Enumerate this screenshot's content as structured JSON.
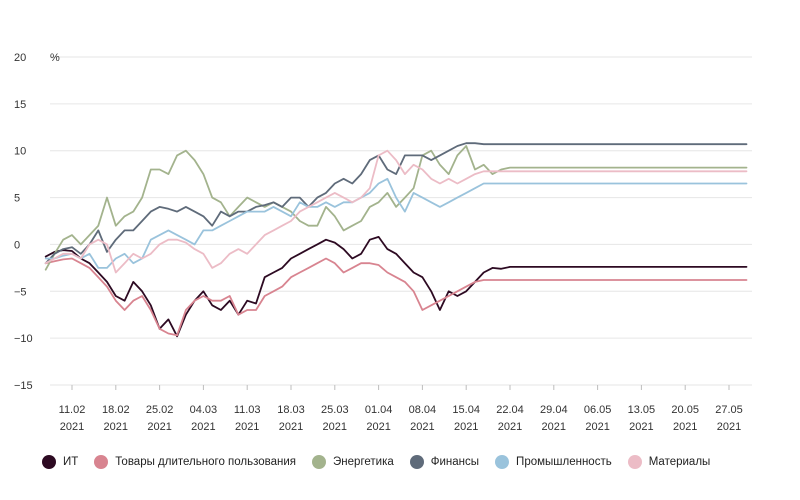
{
  "chart_data": {
    "type": "line",
    "ylabel": "%",
    "ylim": [
      -15,
      20
    ],
    "yticks": [
      "20",
      "15",
      "10",
      "5",
      "0",
      "−5",
      "−10",
      "−15"
    ],
    "yticks_values": [
      20,
      15,
      10,
      5,
      0,
      -5,
      -10,
      -15
    ],
    "grid": "horizontal",
    "legend_position": "bottom",
    "xticks": [
      {
        "date": "11.02",
        "year": "2021"
      },
      {
        "date": "18.02",
        "year": "2021"
      },
      {
        "date": "25.02",
        "year": "2021"
      },
      {
        "date": "04.03",
        "year": "2021"
      },
      {
        "date": "11.03",
        "year": "2021"
      },
      {
        "date": "18.03",
        "year": "2021"
      },
      {
        "date": "25.03",
        "year": "2021"
      },
      {
        "date": "01.04",
        "year": "2021"
      },
      {
        "date": "08.04",
        "year": "2021"
      },
      {
        "date": "15.04",
        "year": "2021"
      },
      {
        "date": "22.04",
        "year": "2021"
      },
      {
        "date": "29.04",
        "year": "2021"
      },
      {
        "date": "06.05",
        "year": "2021"
      },
      {
        "date": "13.05",
        "year": "2021"
      },
      {
        "date": "20.05",
        "year": "2021"
      },
      {
        "date": "27.05",
        "year": "2021"
      }
    ],
    "x": [
      "08.02",
      "09.02",
      "10.02",
      "11.02",
      "12.02",
      "15.02",
      "16.02",
      "17.02",
      "18.02",
      "19.02",
      "22.02",
      "23.02",
      "24.02",
      "25.02",
      "26.02",
      "01.03",
      "02.03",
      "03.03",
      "04.03",
      "05.03",
      "08.03",
      "09.03",
      "10.03",
      "11.03",
      "12.03",
      "15.03",
      "16.03",
      "17.03",
      "18.03",
      "19.03",
      "22.03",
      "23.03",
      "24.03",
      "25.03",
      "26.03",
      "29.03",
      "30.03",
      "31.03",
      "01.04",
      "02.04",
      "05.04",
      "06.04",
      "07.04",
      "08.04",
      "09.04",
      "12.04",
      "13.04",
      "14.04",
      "15.04",
      "16.04",
      "19.04",
      "20.04",
      "21.04",
      "22.04",
      "23.04",
      "26.04",
      "27.04",
      "28.04",
      "29.04",
      "30.04",
      "03.05",
      "04.05",
      "05.05",
      "06.05",
      "07.05",
      "10.05",
      "11.05",
      "12.05",
      "13.05",
      "14.05",
      "17.05",
      "18.05",
      "19.05",
      "20.05",
      "21.05",
      "24.05",
      "25.05",
      "26.05",
      "27.05",
      "28.05",
      "31.05"
    ],
    "series": [
      {
        "name": "ИТ",
        "color": "#2d0a22",
        "values": [
          -1.3,
          -0.8,
          -0.6,
          -0.7,
          -1.5,
          -2.0,
          -3.0,
          -4.0,
          -5.5,
          -6.0,
          -4.0,
          -5.0,
          -6.5,
          -9.0,
          -8.0,
          -9.8,
          -7.5,
          -6.0,
          -5.0,
          -6.5,
          -7.0,
          -6.0,
          -7.5,
          -6.0,
          -6.3,
          -3.5,
          -3.0,
          -2.5,
          -1.5,
          -1.0,
          -0.5,
          0.0,
          0.5,
          0.2,
          -0.5,
          -1.5,
          -1.0,
          0.5,
          0.8,
          -0.5,
          -1.0,
          -2.0,
          -3.0,
          -3.5,
          -5.0,
          -7.0,
          -5.0,
          -5.5,
          -5.0,
          -4.0,
          -3.0,
          -2.5,
          -2.6,
          -2.4,
          -2.4,
          -2.4,
          -2.4,
          -2.4,
          -2.4,
          -2.4,
          -2.4,
          -2.4,
          -2.4,
          -2.4,
          -2.4,
          -2.4,
          -2.4,
          -2.4,
          -2.4,
          -2.4,
          -2.4,
          -2.4,
          -2.4,
          -2.4,
          -2.4,
          -2.4,
          -2.4,
          -2.4,
          -2.4,
          -2.4,
          -2.4
        ]
      },
      {
        "name": "Товары длительного пользования",
        "color": "#d88490",
        "values": [
          -2.0,
          -1.8,
          -1.6,
          -1.5,
          -2.0,
          -2.5,
          -3.5,
          -4.5,
          -6.0,
          -7.0,
          -6.0,
          -5.5,
          -7.0,
          -9.0,
          -9.5,
          -9.7,
          -7.0,
          -6.0,
          -5.5,
          -6.0,
          -6.0,
          -5.5,
          -7.5,
          -7.0,
          -7.0,
          -5.5,
          -5.0,
          -4.5,
          -3.5,
          -3.0,
          -2.5,
          -2.0,
          -1.5,
          -2.0,
          -3.0,
          -2.5,
          -2.0,
          -2.0,
          -2.2,
          -3.0,
          -3.5,
          -4.0,
          -5.0,
          -7.0,
          -6.5,
          -6.0,
          -5.5,
          -5.0,
          -4.5,
          -4.0,
          -3.8,
          -3.8,
          -3.8,
          -3.8,
          -3.8,
          -3.8,
          -3.8,
          -3.8,
          -3.8,
          -3.8,
          -3.8,
          -3.8,
          -3.8,
          -3.8,
          -3.8,
          -3.8,
          -3.8,
          -3.8,
          -3.8,
          -3.8,
          -3.8,
          -3.8,
          -3.8,
          -3.8,
          -3.8,
          -3.8,
          -3.8,
          -3.8,
          -3.8,
          -3.8,
          -3.8
        ]
      },
      {
        "name": "Энергетика",
        "color": "#a3b38d",
        "values": [
          -2.7,
          -1.0,
          0.5,
          1.0,
          0.0,
          1.0,
          2.0,
          5.0,
          2.0,
          3.0,
          3.5,
          5.0,
          8.0,
          8.0,
          7.5,
          9.5,
          10.0,
          9.0,
          7.5,
          5.0,
          4.5,
          3.0,
          4.0,
          5.0,
          4.5,
          4.0,
          4.5,
          4.0,
          3.5,
          2.5,
          2.0,
          2.0,
          4.0,
          3.0,
          1.5,
          2.0,
          2.5,
          4.0,
          4.5,
          5.5,
          4.0,
          5.0,
          6.0,
          9.5,
          10.0,
          8.5,
          7.5,
          9.5,
          10.5,
          8.0,
          8.5,
          7.5,
          8.0,
          8.2,
          8.2,
          8.2,
          8.2,
          8.2,
          8.2,
          8.2,
          8.2,
          8.2,
          8.2,
          8.2,
          8.2,
          8.2,
          8.2,
          8.2,
          8.2,
          8.2,
          8.2,
          8.2,
          8.2,
          8.2,
          8.2,
          8.2,
          8.2,
          8.2,
          8.2,
          8.2,
          8.2
        ]
      },
      {
        "name": "Финансы",
        "color": "#5f6b7a",
        "values": [
          -2.0,
          -1.0,
          -0.5,
          -0.3,
          -1.0,
          0.0,
          1.5,
          -0.8,
          0.5,
          1.5,
          1.5,
          2.5,
          3.5,
          4.0,
          3.8,
          3.5,
          4.0,
          3.5,
          3.0,
          2.0,
          3.5,
          3.0,
          3.5,
          3.5,
          4.0,
          4.2,
          4.5,
          4.0,
          5.0,
          5.0,
          4.0,
          5.0,
          5.5,
          6.5,
          7.0,
          6.5,
          7.5,
          9.0,
          9.5,
          8.0,
          7.5,
          9.5,
          9.5,
          9.5,
          9.0,
          9.5,
          10.0,
          10.5,
          10.8,
          10.8,
          10.7,
          10.7,
          10.7,
          10.7,
          10.7,
          10.7,
          10.7,
          10.7,
          10.7,
          10.7,
          10.7,
          10.7,
          10.7,
          10.7,
          10.7,
          10.7,
          10.7,
          10.7,
          10.7,
          10.7,
          10.7,
          10.7,
          10.7,
          10.7,
          10.7,
          10.7,
          10.7,
          10.7,
          10.7,
          10.7,
          10.7
        ]
      },
      {
        "name": "Промышленность",
        "color": "#9ac3dc",
        "values": [
          -1.5,
          -1.5,
          -1.2,
          -1.0,
          -1.5,
          -1.0,
          -2.5,
          -2.5,
          -1.5,
          -1.0,
          -2.0,
          -1.5,
          0.5,
          1.0,
          1.5,
          1.0,
          0.5,
          0.0,
          1.5,
          1.5,
          2.0,
          2.5,
          3.0,
          3.5,
          3.5,
          3.5,
          4.0,
          3.5,
          3.0,
          4.5,
          4.0,
          4.0,
          4.5,
          4.0,
          4.5,
          4.5,
          5.0,
          5.5,
          6.5,
          7.0,
          5.0,
          3.5,
          5.5,
          5.0,
          4.5,
          4.0,
          4.5,
          5.0,
          5.5,
          6.0,
          6.5,
          6.5,
          6.5,
          6.5,
          6.5,
          6.5,
          6.5,
          6.5,
          6.5,
          6.5,
          6.5,
          6.5,
          6.5,
          6.5,
          6.5,
          6.5,
          6.5,
          6.5,
          6.5,
          6.5,
          6.5,
          6.5,
          6.5,
          6.5,
          6.5,
          6.5,
          6.5,
          6.5,
          6.5,
          6.5,
          6.5
        ]
      },
      {
        "name": "Материалы",
        "color": "#ecbcc6",
        "values": [
          -2.0,
          -1.5,
          -1.0,
          -1.0,
          -1.5,
          0.0,
          0.5,
          0.0,
          -3.0,
          -2.0,
          -1.0,
          -1.5,
          -1.0,
          0.0,
          0.5,
          0.5,
          0.2,
          -0.5,
          -1.0,
          -2.5,
          -2.0,
          -1.0,
          -0.5,
          -1.0,
          0.0,
          1.0,
          1.5,
          2.0,
          2.5,
          3.5,
          4.0,
          4.5,
          5.0,
          5.5,
          5.0,
          4.5,
          5.0,
          6.0,
          9.5,
          10.0,
          9.0,
          7.5,
          8.5,
          8.0,
          7.0,
          6.5,
          7.0,
          6.5,
          7.0,
          7.5,
          7.8,
          7.8,
          7.8,
          7.8,
          7.8,
          7.8,
          7.8,
          7.8,
          7.8,
          7.8,
          7.8,
          7.8,
          7.8,
          7.8,
          7.8,
          7.8,
          7.8,
          7.8,
          7.8,
          7.8,
          7.8,
          7.8,
          7.8,
          7.8,
          7.8,
          7.8,
          7.8,
          7.8,
          7.8,
          7.8,
          7.8
        ]
      }
    ]
  }
}
